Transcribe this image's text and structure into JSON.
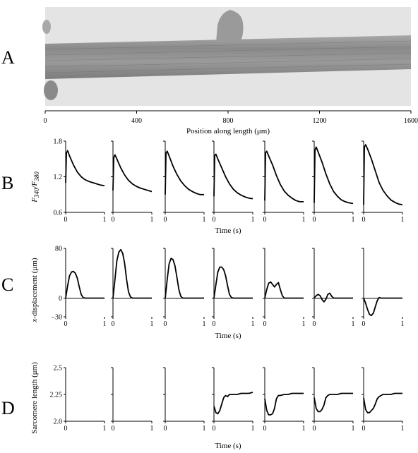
{
  "figure": {
    "panel_letters": [
      "A",
      "B",
      "C",
      "D"
    ],
    "colors": {
      "trace": "#000000",
      "micrograph_background": "#e6e6e6",
      "fibre": "#8f8f8f"
    }
  },
  "micrograph": {
    "description_icon": "muscle-fibre-micrograph",
    "scale": {
      "ticks": [
        "0",
        "400",
        "800",
        "1200",
        "1600"
      ],
      "tick_values": [
        0,
        400,
        800,
        1200,
        1600
      ],
      "label": "Position along length (μm)"
    }
  },
  "chart_data": [
    {
      "panel": "B",
      "type": "line",
      "ylabel_main": "F",
      "ylabel_sub1": "340",
      "ylabel_sep": "/F",
      "ylabel_sub2": "380",
      "xlabel": "Time (s)",
      "yticks": [
        "1.8",
        "1.2",
        "0.6"
      ],
      "ytick_values": [
        1.8,
        1.2,
        0.6
      ],
      "ylim": [
        0.6,
        1.8
      ],
      "xlim": [
        0,
        1
      ],
      "xticks": [
        "0",
        "1"
      ],
      "series": [
        {
          "baseline": 1.1,
          "peak": 1.64,
          "end": 1.05,
          "x": [
            0,
            0.02,
            0.05,
            0.1,
            0.2,
            0.3,
            0.4,
            0.5,
            0.6,
            0.7,
            0.8,
            0.9,
            1.0
          ],
          "values": [
            1.1,
            1.6,
            1.64,
            1.55,
            1.4,
            1.28,
            1.2,
            1.15,
            1.12,
            1.1,
            1.08,
            1.06,
            1.05
          ]
        },
        {
          "x": [
            0,
            0.02,
            0.05,
            0.1,
            0.2,
            0.3,
            0.4,
            0.5,
            0.6,
            0.7,
            0.8,
            0.9,
            1.0
          ],
          "values": [
            0.97,
            1.52,
            1.57,
            1.5,
            1.35,
            1.23,
            1.14,
            1.08,
            1.04,
            1.01,
            0.99,
            0.97,
            0.95
          ]
        },
        {
          "x": [
            0,
            0.02,
            0.05,
            0.1,
            0.2,
            0.3,
            0.4,
            0.5,
            0.6,
            0.7,
            0.8,
            0.9,
            1.0
          ],
          "values": [
            0.9,
            1.6,
            1.63,
            1.55,
            1.38,
            1.24,
            1.13,
            1.05,
            0.99,
            0.95,
            0.92,
            0.9,
            0.9
          ]
        },
        {
          "x": [
            0,
            0.02,
            0.05,
            0.1,
            0.2,
            0.3,
            0.4,
            0.5,
            0.6,
            0.7,
            0.8,
            0.9,
            1.0
          ],
          "values": [
            0.87,
            1.56,
            1.58,
            1.5,
            1.35,
            1.2,
            1.08,
            0.99,
            0.93,
            0.89,
            0.86,
            0.84,
            0.83
          ]
        },
        {
          "x": [
            0,
            0.02,
            0.05,
            0.1,
            0.2,
            0.3,
            0.4,
            0.5,
            0.6,
            0.7,
            0.8,
            0.9,
            1.0
          ],
          "values": [
            0.8,
            1.6,
            1.63,
            1.55,
            1.4,
            1.22,
            1.07,
            0.96,
            0.89,
            0.84,
            0.8,
            0.78,
            0.78
          ]
        },
        {
          "x": [
            0,
            0.02,
            0.05,
            0.1,
            0.2,
            0.3,
            0.4,
            0.5,
            0.6,
            0.7,
            0.8,
            0.9,
            1.0
          ],
          "values": [
            0.76,
            1.65,
            1.7,
            1.62,
            1.45,
            1.25,
            1.08,
            0.95,
            0.87,
            0.81,
            0.78,
            0.76,
            0.75
          ]
        },
        {
          "x": [
            0,
            0.02,
            0.05,
            0.1,
            0.2,
            0.3,
            0.4,
            0.5,
            0.6,
            0.7,
            0.8,
            0.9,
            1.0
          ],
          "values": [
            0.73,
            1.7,
            1.74,
            1.67,
            1.5,
            1.3,
            1.1,
            0.97,
            0.88,
            0.81,
            0.77,
            0.74,
            0.73
          ]
        }
      ]
    },
    {
      "panel": "C",
      "type": "line",
      "ylabel_main": "x",
      "ylabel_rest": "-displacement (μm)",
      "xlabel": "Time (s)",
      "yticks": [
        "80",
        "0",
        "−30"
      ],
      "ytick_values": [
        80,
        0,
        -30
      ],
      "ylim": [
        -30,
        80
      ],
      "xlim": [
        0,
        1
      ],
      "xticks": [
        "0",
        "1"
      ],
      "series": [
        {
          "x": [
            0,
            0.05,
            0.1,
            0.15,
            0.2,
            0.25,
            0.3,
            0.35,
            0.4,
            0.45,
            0.5,
            0.55,
            0.6,
            0.8,
            1.0
          ],
          "values": [
            0,
            20,
            36,
            42,
            43,
            40,
            32,
            18,
            6,
            1,
            0,
            0,
            0,
            0,
            0
          ]
        },
        {
          "x": [
            0,
            0.05,
            0.1,
            0.15,
            0.2,
            0.25,
            0.3,
            0.35,
            0.4,
            0.45,
            0.5,
            0.55,
            0.6,
            0.8,
            1.0
          ],
          "values": [
            0,
            30,
            60,
            74,
            78,
            72,
            56,
            30,
            10,
            2,
            0,
            0,
            0,
            0,
            0
          ]
        },
        {
          "x": [
            0,
            0.05,
            0.1,
            0.15,
            0.2,
            0.25,
            0.3,
            0.35,
            0.4,
            0.45,
            0.5,
            0.55,
            0.6,
            0.8,
            1.0
          ],
          "values": [
            0,
            30,
            55,
            64,
            62,
            52,
            34,
            14,
            3,
            0,
            0,
            0,
            0,
            0,
            0
          ]
        },
        {
          "x": [
            0,
            0.05,
            0.1,
            0.15,
            0.2,
            0.25,
            0.3,
            0.35,
            0.4,
            0.45,
            0.5,
            0.55,
            0.6,
            0.8,
            1.0
          ],
          "values": [
            0,
            22,
            42,
            50,
            50,
            46,
            36,
            20,
            6,
            1,
            0,
            0,
            0,
            0,
            0
          ]
        },
        {
          "x": [
            0,
            0.05,
            0.1,
            0.15,
            0.2,
            0.25,
            0.3,
            0.35,
            0.4,
            0.45,
            0.5,
            0.55,
            0.6,
            0.8,
            1.0
          ],
          "values": [
            0,
            14,
            24,
            26,
            22,
            18,
            22,
            25,
            14,
            4,
            0,
            0,
            0,
            0,
            0
          ]
        },
        {
          "x": [
            0,
            0.05,
            0.1,
            0.15,
            0.2,
            0.25,
            0.3,
            0.35,
            0.4,
            0.45,
            0.5,
            0.55,
            0.6,
            0.8,
            1.0
          ],
          "values": [
            0,
            4,
            6,
            4,
            -2,
            -6,
            -2,
            6,
            8,
            3,
            0,
            0,
            0,
            0,
            0
          ]
        },
        {
          "x": [
            0,
            0.05,
            0.1,
            0.15,
            0.2,
            0.25,
            0.3,
            0.35,
            0.4,
            0.45,
            0.5,
            0.55,
            0.6,
            0.8,
            1.0
          ],
          "values": [
            0,
            -8,
            -18,
            -26,
            -28,
            -24,
            -14,
            -4,
            1,
            0,
            0,
            0,
            0,
            0,
            0
          ]
        }
      ]
    },
    {
      "panel": "D",
      "type": "line",
      "ylabel": "Sarcomere length (μm)",
      "xlabel": "Time (s)",
      "yticks": [
        "2.5",
        "2.25",
        "2.0"
      ],
      "ytick_values": [
        2.5,
        2.25,
        2.0
      ],
      "ylim": [
        2.0,
        2.5
      ],
      "xlim": [
        0,
        1
      ],
      "xticks": [
        "0",
        "1"
      ],
      "series": [
        {
          "values": []
        },
        {
          "values": []
        },
        {
          "values": []
        },
        {
          "x": [
            0,
            0.05,
            0.1,
            0.15,
            0.2,
            0.25,
            0.3,
            0.35,
            0.4,
            0.5,
            0.6,
            0.7,
            0.8,
            0.9,
            1.0
          ],
          "values": [
            2.14,
            2.08,
            2.07,
            2.1,
            2.16,
            2.22,
            2.24,
            2.23,
            2.25,
            2.25,
            2.25,
            2.26,
            2.26,
            2.26,
            2.27
          ]
        },
        {
          "x": [
            0,
            0.05,
            0.1,
            0.15,
            0.2,
            0.25,
            0.3,
            0.35,
            0.4,
            0.5,
            0.6,
            0.7,
            0.8,
            0.9,
            1.0
          ],
          "values": [
            2.21,
            2.1,
            2.06,
            2.06,
            2.07,
            2.12,
            2.21,
            2.24,
            2.24,
            2.25,
            2.25,
            2.26,
            2.26,
            2.26,
            2.26
          ]
        },
        {
          "x": [
            0,
            0.05,
            0.1,
            0.15,
            0.2,
            0.25,
            0.3,
            0.35,
            0.4,
            0.5,
            0.6,
            0.7,
            0.8,
            0.9,
            1.0
          ],
          "values": [
            2.22,
            2.12,
            2.09,
            2.09,
            2.11,
            2.15,
            2.22,
            2.24,
            2.25,
            2.25,
            2.25,
            2.26,
            2.26,
            2.26,
            2.26
          ]
        },
        {
          "x": [
            0,
            0.05,
            0.1,
            0.15,
            0.2,
            0.25,
            0.3,
            0.35,
            0.4,
            0.5,
            0.6,
            0.7,
            0.8,
            0.9,
            1.0
          ],
          "values": [
            2.22,
            2.11,
            2.08,
            2.08,
            2.1,
            2.12,
            2.16,
            2.21,
            2.23,
            2.25,
            2.25,
            2.25,
            2.26,
            2.26,
            2.26
          ]
        }
      ]
    }
  ]
}
